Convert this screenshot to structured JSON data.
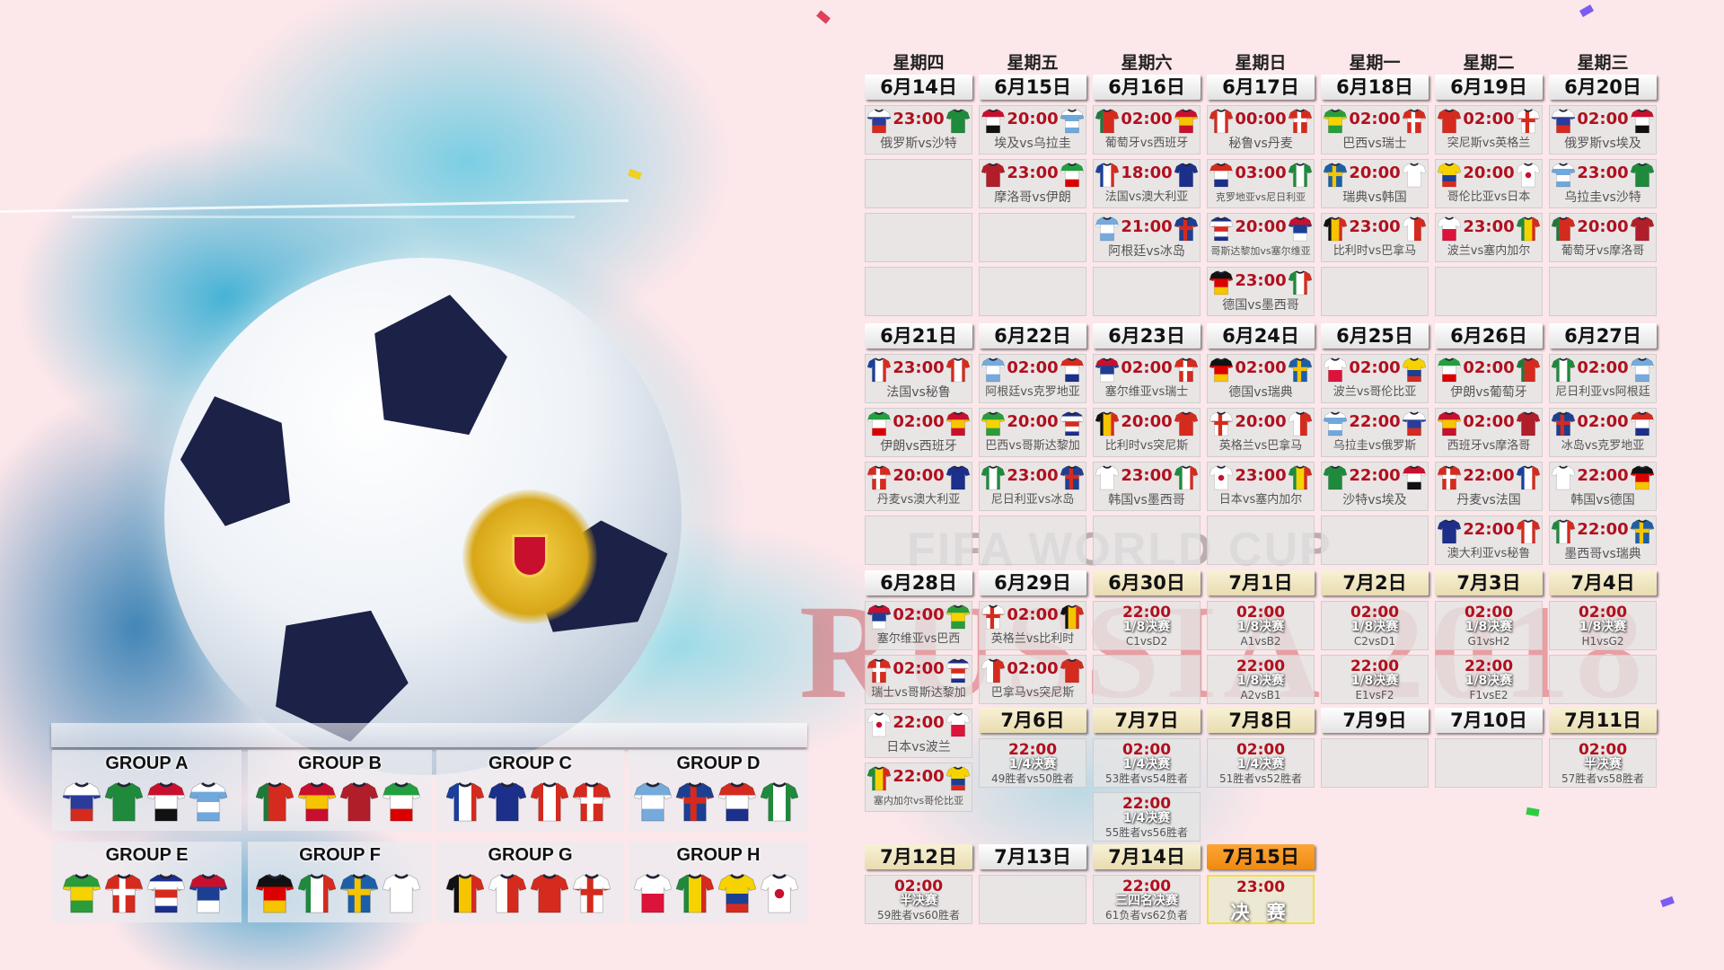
{
  "watermark": {
    "line1": "FIFA WORLD CUP",
    "line2": "RUSSIA 2018"
  },
  "colors": {
    "time": "#b0101e",
    "header_plain": "#e3e3e3",
    "header_gold": "#e8dcb0",
    "header_final": "#f08a10",
    "background": "#fce7ea"
  },
  "teams": {
    "俄罗斯": {
      "style": "h",
      "c": [
        "#ffffff",
        "#2a3b9a",
        "#d52b1e"
      ]
    },
    "沙特": {
      "style": "solid",
      "c": [
        "#1f8a3c"
      ]
    },
    "埃及": {
      "style": "h",
      "c": [
        "#c8102e",
        "#ffffff",
        "#111111"
      ]
    },
    "乌拉圭": {
      "style": "h",
      "c": [
        "#ffffff",
        "#6fa8dc",
        "#ffffff",
        "#6fa8dc"
      ]
    },
    "葡萄牙": {
      "style": "v",
      "c": [
        "#1f7a3a",
        "#d52b1e",
        "#d52b1e"
      ]
    },
    "西班牙": {
      "style": "h",
      "c": [
        "#c8102e",
        "#f6c400",
        "#c8102e"
      ]
    },
    "摩洛哥": {
      "style": "solid",
      "c": [
        "#b01e2a"
      ]
    },
    "伊朗": {
      "style": "h",
      "c": [
        "#239f40",
        "#ffffff",
        "#da0000"
      ]
    },
    "法国": {
      "style": "v",
      "c": [
        "#1a3f9c",
        "#ffffff",
        "#d52b1e"
      ]
    },
    "澳大利亚": {
      "style": "solid",
      "c": [
        "#1c2f8a"
      ]
    },
    "秘鲁": {
      "style": "v",
      "c": [
        "#d52b1e",
        "#ffffff",
        "#d52b1e"
      ]
    },
    "丹麦": {
      "style": "cross",
      "c": [
        "#d52b1e",
        "#ffffff"
      ]
    },
    "阿根廷": {
      "style": "h",
      "c": [
        "#75aadb",
        "#ffffff",
        "#75aadb"
      ]
    },
    "冰岛": {
      "style": "cross",
      "c": [
        "#1c3f94",
        "#d52b1e"
      ]
    },
    "克罗地亚": {
      "style": "h",
      "c": [
        "#d52b1e",
        "#ffffff",
        "#1c2f8a"
      ]
    },
    "尼日利亚": {
      "style": "v",
      "c": [
        "#1f8a3c",
        "#ffffff",
        "#1f8a3c"
      ]
    },
    "巴西": {
      "style": "h",
      "c": [
        "#2a9d3a",
        "#f6d300",
        "#2a9d3a"
      ]
    },
    "瑞士": {
      "style": "cross",
      "c": [
        "#d52b1e",
        "#ffffff"
      ]
    },
    "哥斯达黎加": {
      "style": "h",
      "c": [
        "#1c2f8a",
        "#ffffff",
        "#d52b1e",
        "#ffffff",
        "#1c2f8a"
      ]
    },
    "塞尔维亚": {
      "style": "h",
      "c": [
        "#c8102e",
        "#1c3f94",
        "#ffffff"
      ]
    },
    "德国": {
      "style": "h",
      "c": [
        "#111111",
        "#dd0000",
        "#f6c400"
      ]
    },
    "墨西哥": {
      "style": "v",
      "c": [
        "#1f8a3c",
        "#ffffff",
        "#d52b1e"
      ]
    },
    "瑞典": {
      "style": "cross",
      "c": [
        "#1c5fa8",
        "#f6c400"
      ]
    },
    "韩国": {
      "style": "solid",
      "c": [
        "#ffffff"
      ]
    },
    "比利时": {
      "style": "v",
      "c": [
        "#111111",
        "#f6c400",
        "#d52b1e"
      ]
    },
    "巴拿马": {
      "style": "v",
      "c": [
        "#ffffff",
        "#d52b1e"
      ]
    },
    "突尼斯": {
      "style": "solid",
      "c": [
        "#d52b1e"
      ]
    },
    "英格兰": {
      "style": "cross",
      "c": [
        "#ffffff",
        "#d52b1e"
      ]
    },
    "波兰": {
      "style": "h",
      "c": [
        "#ffffff",
        "#dc143c"
      ]
    },
    "塞内加尔": {
      "style": "v",
      "c": [
        "#1f8a3c",
        "#f6d300",
        "#d52b1e"
      ]
    },
    "哥伦比亚": {
      "style": "h",
      "c": [
        "#f6d300",
        "#f6d300",
        "#1c3f94",
        "#d52b1e"
      ]
    },
    "日本": {
      "style": "solid",
      "c": [
        "#ffffff"
      ]
    }
  },
  "groups": [
    {
      "name": "GROUP A",
      "teams": [
        "俄罗斯",
        "沙特",
        "埃及",
        "乌拉圭"
      ]
    },
    {
      "name": "GROUP B",
      "teams": [
        "葡萄牙",
        "西班牙",
        "摩洛哥",
        "伊朗"
      ]
    },
    {
      "name": "GROUP C",
      "teams": [
        "法国",
        "澳大利亚",
        "秘鲁",
        "丹麦"
      ]
    },
    {
      "name": "GROUP D",
      "teams": [
        "阿根廷",
        "冰岛",
        "克罗地亚",
        "尼日利亚"
      ]
    },
    {
      "name": "GROUP E",
      "teams": [
        "巴西",
        "瑞士",
        "哥斯达黎加",
        "塞尔维亚"
      ]
    },
    {
      "name": "GROUP F",
      "teams": [
        "德国",
        "墨西哥",
        "瑞典",
        "韩国"
      ]
    },
    {
      "name": "GROUP G",
      "teams": [
        "比利时",
        "巴拿马",
        "突尼斯",
        "英格兰"
      ]
    },
    {
      "name": "GROUP H",
      "teams": [
        "波兰",
        "塞内加尔",
        "哥伦比亚",
        "日本"
      ]
    }
  ],
  "calendar": {
    "weekdays": [
      "星期四",
      "星期五",
      "星期六",
      "星期日",
      "星期一",
      "星期二",
      "星期三"
    ],
    "weeks": [
      {
        "days": [
          {
            "date": "6月14日",
            "header": "plain",
            "matches": [
              {
                "time": "23:00",
                "home": "俄罗斯",
                "away": "沙特"
              }
            ]
          },
          {
            "date": "6月15日",
            "header": "plain",
            "matches": [
              {
                "time": "20:00",
                "home": "埃及",
                "away": "乌拉圭"
              },
              {
                "time": "23:00",
                "home": "摩洛哥",
                "away": "伊朗"
              }
            ]
          },
          {
            "date": "6月16日",
            "header": "plain",
            "matches": [
              {
                "time": "02:00",
                "home": "葡萄牙",
                "away": "西班牙"
              },
              {
                "time": "18:00",
                "home": "法国",
                "away": "澳大利亚"
              },
              {
                "time": "21:00",
                "home": "阿根廷",
                "away": "冰岛"
              }
            ]
          },
          {
            "date": "6月17日",
            "header": "plain",
            "matches": [
              {
                "time": "00:00",
                "home": "秘鲁",
                "away": "丹麦"
              },
              {
                "time": "03:00",
                "home": "克罗地亚",
                "away": "尼日利亚"
              },
              {
                "time": "20:00",
                "home": "哥斯达黎加",
                "away": "塞尔维亚"
              },
              {
                "time": "23:00",
                "home": "德国",
                "away": "墨西哥"
              }
            ]
          },
          {
            "date": "6月18日",
            "header": "plain",
            "matches": [
              {
                "time": "02:00",
                "home": "巴西",
                "away": "瑞士"
              },
              {
                "time": "20:00",
                "home": "瑞典",
                "away": "韩国"
              },
              {
                "time": "23:00",
                "home": "比利时",
                "away": "巴拿马"
              }
            ]
          },
          {
            "date": "6月19日",
            "header": "plain",
            "matches": [
              {
                "time": "02:00",
                "home": "突尼斯",
                "away": "英格兰"
              },
              {
                "time": "20:00",
                "home": "哥伦比亚",
                "away": "日本"
              },
              {
                "time": "23:00",
                "home": "波兰",
                "away": "塞内加尔"
              }
            ]
          },
          {
            "date": "6月20日",
            "header": "plain",
            "matches": [
              {
                "time": "02:00",
                "home": "俄罗斯",
                "away": "埃及"
              },
              {
                "time": "23:00",
                "home": "乌拉圭",
                "away": "沙特"
              },
              {
                "time": "20:00",
                "home": "葡萄牙",
                "away": "摩洛哥"
              }
            ]
          }
        ]
      },
      {
        "days": [
          {
            "date": "6月21日",
            "header": "plain",
            "matches": [
              {
                "time": "23:00",
                "home": "法国",
                "away": "秘鲁"
              },
              {
                "time": "02:00",
                "home": "伊朗",
                "away": "西班牙"
              },
              {
                "time": "20:00",
                "home": "丹麦",
                "away": "澳大利亚"
              }
            ]
          },
          {
            "date": "6月22日",
            "header": "plain",
            "matches": [
              {
                "time": "02:00",
                "home": "阿根廷",
                "away": "克罗地亚"
              },
              {
                "time": "20:00",
                "home": "巴西",
                "away": "哥斯达黎加"
              },
              {
                "time": "23:00",
                "home": "尼日利亚",
                "away": "冰岛"
              }
            ]
          },
          {
            "date": "6月23日",
            "header": "plain",
            "matches": [
              {
                "time": "02:00",
                "home": "塞尔维亚",
                "away": "瑞士"
              },
              {
                "time": "20:00",
                "home": "比利时",
                "away": "突尼斯"
              },
              {
                "time": "23:00",
                "home": "韩国",
                "away": "墨西哥"
              }
            ]
          },
          {
            "date": "6月24日",
            "header": "plain",
            "matches": [
              {
                "time": "02:00",
                "home": "德国",
                "away": "瑞典"
              },
              {
                "time": "20:00",
                "home": "英格兰",
                "away": "巴拿马"
              },
              {
                "time": "23:00",
                "home": "日本",
                "away": "塞内加尔"
              }
            ]
          },
          {
            "date": "6月25日",
            "header": "plain",
            "matches": [
              {
                "time": "02:00",
                "home": "波兰",
                "away": "哥伦比亚"
              },
              {
                "time": "22:00",
                "home": "乌拉圭",
                "away": "俄罗斯"
              },
              {
                "time": "22:00",
                "home": "沙特",
                "away": "埃及"
              }
            ]
          },
          {
            "date": "6月26日",
            "header": "plain",
            "matches": [
              {
                "time": "02:00",
                "home": "伊朗",
                "away": "葡萄牙"
              },
              {
                "time": "02:00",
                "home": "西班牙",
                "away": "摩洛哥"
              },
              {
                "time": "22:00",
                "home": "丹麦",
                "away": "法国"
              },
              {
                "time": "22:00",
                "home": "澳大利亚",
                "away": "秘鲁"
              }
            ]
          },
          {
            "date": "6月27日",
            "header": "plain",
            "matches": [
              {
                "time": "02:00",
                "home": "尼日利亚",
                "away": "阿根廷"
              },
              {
                "time": "02:00",
                "home": "冰岛",
                "away": "克罗地亚"
              },
              {
                "time": "22:00",
                "home": "韩国",
                "away": "德国"
              },
              {
                "time": "22:00",
                "home": "墨西哥",
                "away": "瑞典"
              }
            ]
          }
        ]
      },
      {
        "days": [
          {
            "date": "6月28日",
            "header": "plain",
            "matches": [
              {
                "time": "02:00",
                "home": "塞尔维亚",
                "away": "巴西"
              },
              {
                "time": "02:00",
                "home": "瑞士",
                "away": "哥斯达黎加"
              },
              {
                "time": "22:00",
                "home": "日本",
                "away": "波兰"
              },
              {
                "time": "22:00",
                "home": "塞内加尔",
                "away": "哥伦比亚"
              }
            ]
          },
          {
            "date": "6月29日",
            "header": "plain",
            "matches": [
              {
                "time": "02:00",
                "home": "英格兰",
                "away": "比利时"
              },
              {
                "time": "02:00",
                "home": "巴拿马",
                "away": "突尼斯"
              }
            ]
          },
          {
            "date": "6月30日",
            "header": "gold",
            "matches": [
              {
                "time": "22:00",
                "round": "1/8决赛",
                "pairing": "C1vsD2"
              }
            ]
          },
          {
            "date": "7月1日",
            "header": "gold",
            "matches": [
              {
                "time": "02:00",
                "round": "1/8决赛",
                "pairing": "A1vsB2"
              },
              {
                "time": "22:00",
                "round": "1/8决赛",
                "pairing": "A2vsB1"
              }
            ]
          },
          {
            "date": "7月2日",
            "header": "gold",
            "matches": [
              {
                "time": "02:00",
                "round": "1/8决赛",
                "pairing": "C2vsD1"
              },
              {
                "time": "22:00",
                "round": "1/8决赛",
                "pairing": "E1vsF2"
              }
            ]
          },
          {
            "date": "7月3日",
            "header": "gold",
            "matches": [
              {
                "time": "02:00",
                "round": "1/8决赛",
                "pairing": "G1vsH2"
              },
              {
                "time": "22:00",
                "round": "1/8决赛",
                "pairing": "F1vsE2"
              }
            ]
          },
          {
            "date": "7月4日",
            "header": "gold",
            "matches": [
              {
                "time": "02:00",
                "round": "1/8决赛",
                "pairing": "H1vsG2"
              }
            ]
          }
        ]
      },
      {
        "days": [
          null,
          {
            "date": "7月6日",
            "header": "gold",
            "matches": [
              {
                "time": "22:00",
                "round": "1/4决赛",
                "pairing": "49胜者vs50胜者"
              }
            ]
          },
          {
            "date": "7月7日",
            "header": "gold",
            "matches": [
              {
                "time": "02:00",
                "round": "1/4决赛",
                "pairing": "53胜者vs54胜者"
              },
              {
                "time": "22:00",
                "round": "1/4决赛",
                "pairing": "55胜者vs56胜者"
              }
            ]
          },
          {
            "date": "7月8日",
            "header": "gold",
            "matches": [
              {
                "time": "02:00",
                "round": "1/4决赛",
                "pairing": "51胜者vs52胜者"
              }
            ]
          },
          {
            "date": "7月9日",
            "header": "plain",
            "matches": []
          },
          {
            "date": "7月10日",
            "header": "plain",
            "matches": []
          },
          {
            "date": "7月11日",
            "header": "gold",
            "matches": [
              {
                "time": "02:00",
                "round": "半决赛",
                "pairing": "57胜者vs58胜者"
              }
            ]
          }
        ]
      },
      {
        "days": [
          {
            "date": "7月12日",
            "header": "gold",
            "matches": [
              {
                "time": "02:00",
                "round": "半决赛",
                "pairing": "59胜者vs60胜者"
              }
            ]
          },
          {
            "date": "7月13日",
            "header": "plain",
            "matches": []
          },
          {
            "date": "7月14日",
            "header": "gold",
            "matches": [
              {
                "time": "22:00",
                "round": "三四名决赛",
                "pairing": "61负者vs62负者"
              }
            ]
          },
          {
            "date": "7月15日",
            "header": "orange",
            "matches": [
              {
                "time": "23:00",
                "round": "决 赛",
                "final": true
              }
            ]
          }
        ]
      }
    ]
  }
}
